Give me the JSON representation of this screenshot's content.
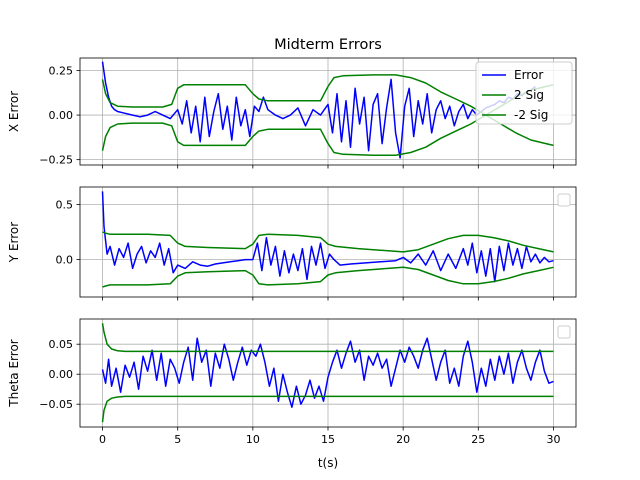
{
  "title": "Midterm Errors",
  "colors": {
    "error": "#0000ff",
    "sig": "#008000",
    "grid": "#b0b0b0",
    "axes": "#000000"
  },
  "chart_data": [
    {
      "type": "line",
      "title": "Midterm Errors",
      "ylabel": "X Error",
      "xlim": [
        -1.5,
        31.5
      ],
      "ylim": [
        -0.28,
        0.32
      ],
      "xticks": [
        0,
        5,
        10,
        15,
        20,
        25,
        30
      ],
      "yticks": [
        -0.25,
        0.0,
        0.25
      ],
      "ytick_labels": [
        "−0.25",
        "0.00",
        "0.25"
      ],
      "grid": true,
      "legend": {
        "placement": "top-right",
        "entries": [
          "Error",
          "2 Sig",
          "-2 Sig"
        ]
      },
      "series": [
        {
          "name": "Error",
          "color": "#0000ff",
          "x": [
            0,
            0.2,
            0.4,
            0.6,
            0.8,
            1.0,
            1.5,
            2.0,
            2.5,
            3.0,
            3.5,
            4.0,
            4.5,
            5.0,
            5.3,
            5.6,
            5.9,
            6.2,
            6.5,
            6.8,
            7.1,
            7.4,
            7.7,
            8.0,
            8.3,
            8.6,
            8.9,
            9.2,
            9.5,
            9.8,
            10.1,
            10.4,
            10.7,
            11.0,
            11.5,
            12.0,
            12.5,
            13.0,
            13.5,
            14.0,
            14.5,
            15.0,
            15.3,
            15.6,
            15.9,
            16.2,
            16.5,
            16.8,
            17.1,
            17.4,
            17.7,
            18.0,
            18.3,
            18.6,
            18.9,
            19.2,
            19.5,
            19.8,
            20.1,
            20.4,
            20.7,
            21.0,
            21.3,
            21.6,
            21.9,
            22.2,
            22.5,
            22.8,
            23.1,
            23.4,
            23.7,
            24.0,
            24.3,
            24.6,
            24.9,
            25.2,
            25.5,
            25.8,
            26.1,
            26.4,
            26.7,
            27.0,
            27.3,
            27.6,
            27.9,
            28.2,
            28.5,
            28.8
          ],
          "y": [
            0.3,
            0.18,
            0.1,
            0.05,
            0.03,
            0.02,
            0.01,
            0.0,
            -0.01,
            0.0,
            0.02,
            0.0,
            -0.02,
            0.03,
            -0.05,
            0.08,
            -0.1,
            0.05,
            -0.15,
            0.1,
            -0.12,
            0.02,
            0.12,
            -0.08,
            0.05,
            -0.14,
            0.1,
            -0.06,
            0.03,
            -0.12,
            0.05,
            0.02,
            0.1,
            0.03,
            0.0,
            -0.02,
            0.0,
            0.04,
            -0.06,
            0.03,
            0.0,
            0.06,
            -0.1,
            0.12,
            -0.15,
            0.08,
            -0.18,
            0.15,
            -0.05,
            0.1,
            -0.2,
            0.06,
            0.12,
            -0.16,
            0.04,
            0.2,
            -0.1,
            -0.24,
            0.05,
            0.15,
            -0.12,
            0.08,
            -0.05,
            0.12,
            -0.1,
            0.03,
            0.08,
            -0.02,
            0.05,
            -0.06,
            0.02,
            0.06,
            -0.02,
            0.03,
            0.0,
            0.02,
            0.04,
            0.05,
            0.06,
            0.08,
            0.07,
            0.1,
            0.09,
            0.12,
            0.11,
            0.13,
            0.14,
            0.16
          ]
        },
        {
          "name": "2 Sig",
          "color": "#008000",
          "x": [
            0,
            0.2,
            0.5,
            1.0,
            2.0,
            3.0,
            4.0,
            4.6,
            5.0,
            5.4,
            6.0,
            8.0,
            9.5,
            10.0,
            10.4,
            11.0,
            13.0,
            14.5,
            15.0,
            15.4,
            16.0,
            18.0,
            19.5,
            20.5,
            21.5,
            22.5,
            23.5,
            24.5,
            25.5,
            26.5,
            27.5,
            28.5,
            29.5,
            30.0
          ],
          "y": [
            0.2,
            0.12,
            0.07,
            0.05,
            0.045,
            0.045,
            0.045,
            0.06,
            0.15,
            0.17,
            0.17,
            0.17,
            0.17,
            0.12,
            0.09,
            0.08,
            0.08,
            0.08,
            0.16,
            0.21,
            0.22,
            0.225,
            0.225,
            0.21,
            0.18,
            0.13,
            0.09,
            0.05,
            0.0,
            -0.05,
            -0.1,
            -0.14,
            -0.16,
            -0.17
          ]
        },
        {
          "name": "-2 Sig",
          "color": "#008000",
          "x": [
            0,
            0.2,
            0.5,
            1.0,
            2.0,
            3.0,
            4.0,
            4.6,
            5.0,
            5.4,
            6.0,
            8.0,
            9.5,
            10.0,
            10.4,
            11.0,
            13.0,
            14.5,
            15.0,
            15.4,
            16.0,
            18.0,
            19.5,
            20.5,
            21.5,
            22.5,
            23.5,
            24.5,
            25.5,
            26.5,
            27.5,
            28.5,
            29.5,
            30.0
          ],
          "y": [
            -0.2,
            -0.12,
            -0.07,
            -0.05,
            -0.045,
            -0.045,
            -0.045,
            -0.06,
            -0.15,
            -0.17,
            -0.17,
            -0.17,
            -0.17,
            -0.12,
            -0.09,
            -0.08,
            -0.08,
            -0.08,
            -0.16,
            -0.21,
            -0.22,
            -0.225,
            -0.225,
            -0.21,
            -0.18,
            -0.13,
            -0.09,
            -0.05,
            0.0,
            0.05,
            0.1,
            0.14,
            0.16,
            0.17
          ]
        }
      ]
    },
    {
      "type": "line",
      "ylabel": "Y Error",
      "xlim": [
        -1.5,
        31.5
      ],
      "ylim": [
        -0.34,
        0.66
      ],
      "xticks": [
        0,
        5,
        10,
        15,
        20,
        25,
        30
      ],
      "yticks": [
        0.0,
        0.5
      ],
      "ytick_labels": [
        "0.0",
        "0.5"
      ],
      "grid": true,
      "legend": {
        "placement": "top-right",
        "entries": []
      },
      "series": [
        {
          "name": "Error",
          "color": "#0000ff",
          "x": [
            0,
            0.1,
            0.3,
            0.5,
            0.8,
            1.1,
            1.4,
            1.7,
            2.0,
            2.3,
            2.6,
            2.9,
            3.2,
            3.5,
            3.8,
            4.1,
            4.4,
            4.7,
            5.0,
            5.5,
            6.0,
            6.5,
            7.0,
            7.5,
            8.0,
            8.5,
            9.0,
            9.5,
            10.0,
            10.3,
            10.6,
            10.9,
            11.2,
            11.5,
            11.8,
            12.1,
            12.4,
            12.7,
            13.0,
            13.3,
            13.6,
            13.9,
            14.2,
            14.5,
            14.8,
            15.1,
            15.4,
            15.8,
            16.5,
            17.5,
            18.5,
            19.5,
            20.0,
            20.5,
            21.0,
            21.5,
            22.0,
            22.5,
            23.0,
            23.5,
            24.0,
            24.3,
            24.6,
            24.9,
            25.2,
            25.5,
            25.8,
            26.1,
            26.4,
            26.7,
            27.0,
            27.3,
            27.6,
            27.9,
            28.2,
            28.5,
            28.8,
            29.1,
            29.4,
            29.7,
            30.0
          ],
          "y": [
            0.62,
            0.3,
            0.05,
            0.12,
            -0.05,
            0.1,
            0.02,
            0.15,
            -0.08,
            0.05,
            0.12,
            -0.03,
            0.08,
            0.02,
            0.15,
            -0.05,
            0.1,
            -0.12,
            -0.05,
            -0.08,
            -0.02,
            -0.05,
            -0.06,
            -0.04,
            -0.03,
            -0.02,
            -0.01,
            0.0,
            0.0,
            0.15,
            -0.1,
            0.2,
            -0.05,
            0.12,
            -0.15,
            0.08,
            -0.12,
            0.05,
            -0.1,
            0.1,
            -0.18,
            0.12,
            -0.05,
            0.15,
            -0.08,
            0.05,
            0.0,
            -0.05,
            -0.04,
            -0.03,
            -0.02,
            -0.01,
            0.02,
            -0.03,
            0.05,
            -0.05,
            0.08,
            -0.1,
            0.05,
            -0.08,
            0.1,
            -0.05,
            0.15,
            -0.12,
            0.08,
            -0.15,
            0.1,
            -0.2,
            0.12,
            -0.1,
            0.15,
            -0.05,
            0.1,
            -0.08,
            0.12,
            -0.02,
            0.05,
            -0.03,
            0.02,
            -0.02,
            -0.01
          ]
        },
        {
          "name": "2 Sig",
          "color": "#008000",
          "x": [
            0,
            0.2,
            0.5,
            1.0,
            3.0,
            4.5,
            5.0,
            5.5,
            7.0,
            9.5,
            10.0,
            10.4,
            11.0,
            13.0,
            14.5,
            15.0,
            15.5,
            17.0,
            19.0,
            20.0,
            21.0,
            22.0,
            23.0,
            24.0,
            25.0,
            26.0,
            27.0,
            28.0,
            29.0,
            30.0
          ],
          "y": [
            0.25,
            0.24,
            0.23,
            0.23,
            0.23,
            0.22,
            0.15,
            0.12,
            0.11,
            0.1,
            0.14,
            0.22,
            0.23,
            0.22,
            0.2,
            0.14,
            0.12,
            0.1,
            0.08,
            0.07,
            0.09,
            0.14,
            0.19,
            0.22,
            0.22,
            0.2,
            0.17,
            0.13,
            0.1,
            0.07
          ]
        },
        {
          "name": "-2 Sig",
          "color": "#008000",
          "x": [
            0,
            0.2,
            0.5,
            1.0,
            3.0,
            4.5,
            5.0,
            5.5,
            7.0,
            9.5,
            10.0,
            10.4,
            11.0,
            13.0,
            14.5,
            15.0,
            15.5,
            17.0,
            19.0,
            20.0,
            21.0,
            22.0,
            23.0,
            24.0,
            25.0,
            26.0,
            27.0,
            28.0,
            29.0,
            30.0
          ],
          "y": [
            -0.25,
            -0.24,
            -0.23,
            -0.23,
            -0.23,
            -0.22,
            -0.15,
            -0.12,
            -0.11,
            -0.1,
            -0.14,
            -0.22,
            -0.23,
            -0.22,
            -0.2,
            -0.14,
            -0.12,
            -0.1,
            -0.08,
            -0.07,
            -0.09,
            -0.14,
            -0.19,
            -0.22,
            -0.22,
            -0.2,
            -0.17,
            -0.13,
            -0.1,
            -0.07
          ]
        }
      ]
    },
    {
      "type": "line",
      "ylabel": "Theta Error",
      "xlabel": "t(s)",
      "xlim": [
        -1.5,
        31.5
      ],
      "ylim": [
        -0.088,
        0.092
      ],
      "xticks": [
        0,
        5,
        10,
        15,
        20,
        25,
        30
      ],
      "xtick_labels": [
        "0",
        "5",
        "10",
        "15",
        "20",
        "25",
        "30"
      ],
      "yticks": [
        -0.05,
        0.0,
        0.05
      ],
      "ytick_labels": [
        "−0.05",
        "0.00",
        "0.05"
      ],
      "grid": true,
      "legend": {
        "placement": "top-right",
        "entries": []
      },
      "series": [
        {
          "name": "Error",
          "color": "#0000ff",
          "x": [
            0,
            0.2,
            0.4,
            0.6,
            0.9,
            1.2,
            1.5,
            1.8,
            2.1,
            2.4,
            2.7,
            3.0,
            3.3,
            3.6,
            3.9,
            4.2,
            4.5,
            4.8,
            5.1,
            5.4,
            5.7,
            6.0,
            6.3,
            6.6,
            6.9,
            7.2,
            7.5,
            7.8,
            8.1,
            8.4,
            8.7,
            9.0,
            9.3,
            9.6,
            9.9,
            10.2,
            10.5,
            10.8,
            11.1,
            11.4,
            11.7,
            12.0,
            12.3,
            12.6,
            12.9,
            13.2,
            13.5,
            13.8,
            14.1,
            14.4,
            14.7,
            15.0,
            15.3,
            15.6,
            15.9,
            16.2,
            16.5,
            16.8,
            17.1,
            17.4,
            17.7,
            18.0,
            18.3,
            18.6,
            18.9,
            19.2,
            19.5,
            19.8,
            20.1,
            20.4,
            20.7,
            21.0,
            21.3,
            21.6,
            21.9,
            22.2,
            22.5,
            22.8,
            23.1,
            23.4,
            23.7,
            24.0,
            24.3,
            24.6,
            24.9,
            25.2,
            25.5,
            25.8,
            26.1,
            26.4,
            26.7,
            27.0,
            27.3,
            27.6,
            27.9,
            28.2,
            28.5,
            28.8,
            29.1,
            29.4,
            29.7,
            30.0
          ],
          "y": [
            0.008,
            -0.015,
            0.025,
            -0.02,
            0.01,
            -0.03,
            0.015,
            -0.005,
            0.02,
            -0.025,
            0.03,
            0.005,
            0.04,
            -0.01,
            0.035,
            -0.02,
            0.025,
            0.01,
            -0.015,
            0.02,
            0.045,
            -0.01,
            0.06,
            0.02,
            0.04,
            -0.02,
            0.035,
            0.01,
            0.05,
            0.025,
            -0.01,
            0.02,
            0.045,
            0.015,
            0.04,
            0.03,
            0.05,
            0.02,
            -0.02,
            0.01,
            -0.045,
            0.0,
            -0.03,
            -0.055,
            -0.02,
            -0.05,
            -0.035,
            -0.01,
            -0.04,
            -0.02,
            -0.045,
            -0.005,
            0.02,
            0.04,
            0.01,
            0.035,
            0.055,
            0.02,
            0.04,
            -0.01,
            0.03,
            0.015,
            0.035,
            0.01,
            0.025,
            -0.02,
            0.01,
            0.04,
            0.02,
            0.045,
            0.03,
            0.01,
            0.04,
            0.06,
            0.025,
            -0.01,
            0.02,
            0.04,
            -0.015,
            0.01,
            -0.02,
            0.03,
            0.055,
            0.02,
            -0.03,
            0.01,
            -0.02,
            0.025,
            -0.01,
            0.03,
            0.0,
            0.035,
            -0.015,
            0.02,
            0.04,
            0.01,
            -0.01,
            0.02,
            0.04,
            0.005,
            -0.015,
            -0.012
          ]
        },
        {
          "name": "2 Sig",
          "color": "#008000",
          "x": [
            0,
            0.1,
            0.3,
            0.6,
            1.0,
            1.5,
            3.0,
            10.0,
            20.0,
            30.0
          ],
          "y": [
            0.085,
            0.07,
            0.05,
            0.042,
            0.039,
            0.038,
            0.038,
            0.038,
            0.038,
            0.038
          ]
        },
        {
          "name": "-2 Sig",
          "color": "#008000",
          "x": [
            0,
            0.1,
            0.3,
            0.6,
            1.0,
            1.5,
            3.0,
            10.0,
            20.0,
            30.0
          ],
          "y": [
            -0.08,
            -0.06,
            -0.045,
            -0.04,
            -0.038,
            -0.037,
            -0.037,
            -0.037,
            -0.037,
            -0.037
          ]
        }
      ]
    }
  ]
}
